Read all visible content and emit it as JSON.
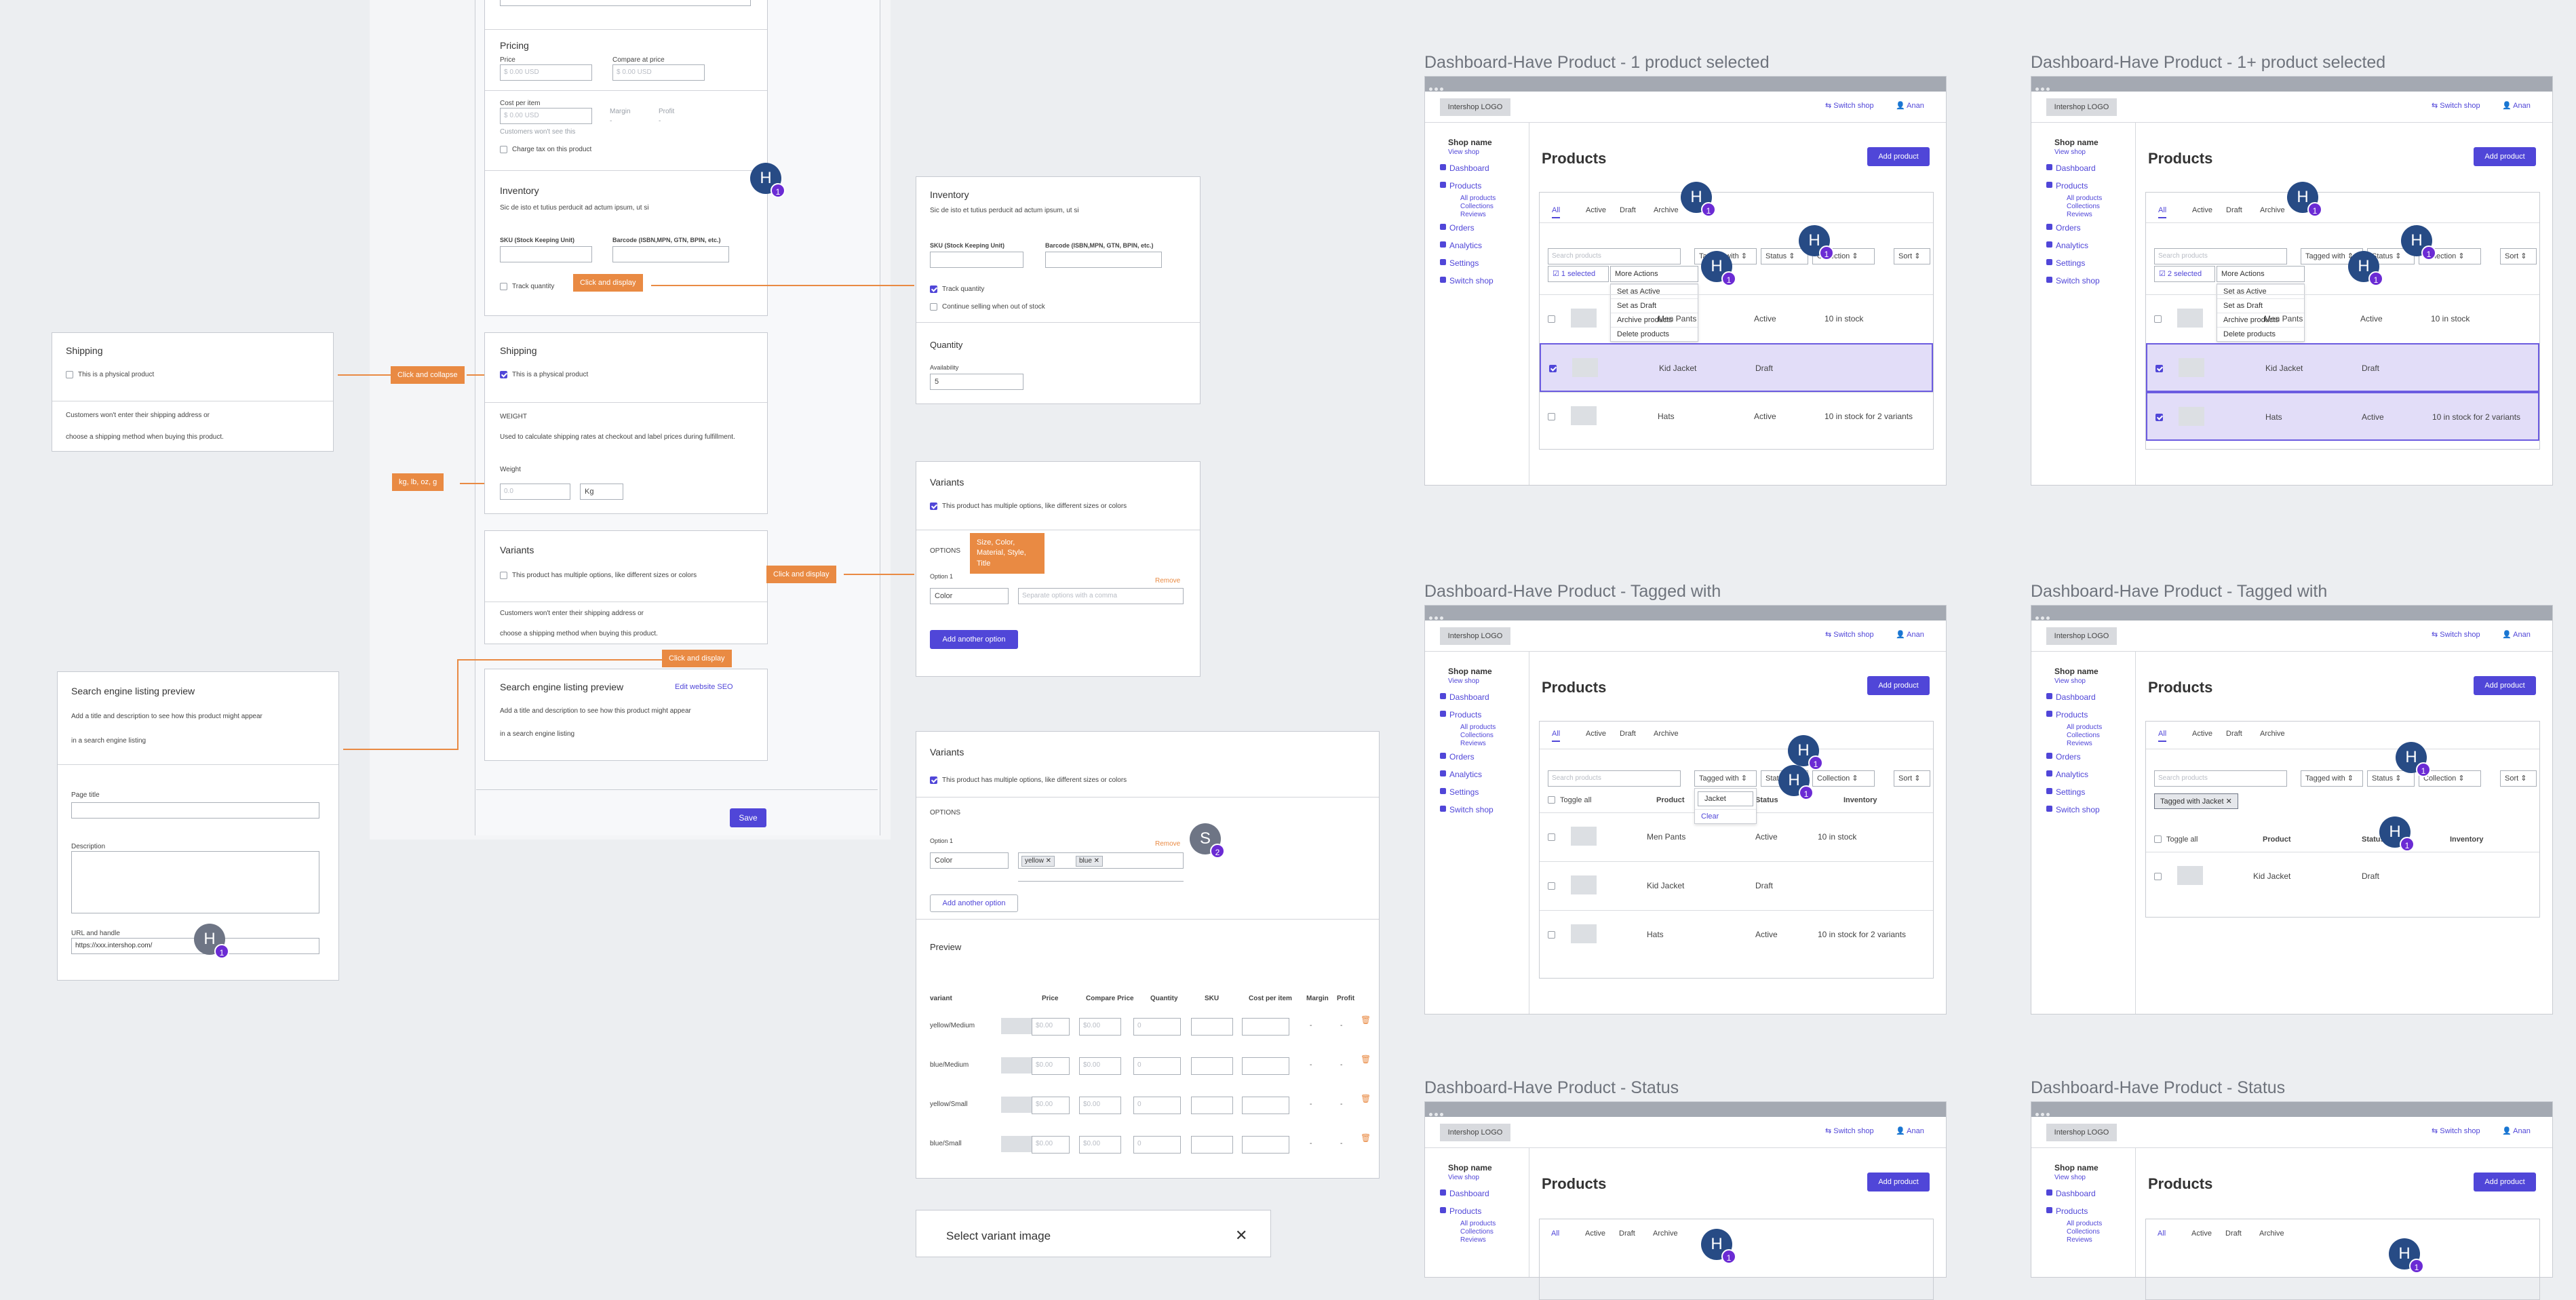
{
  "editor": {
    "pricing": {
      "title": "Pricing",
      "price_label": "Price",
      "price_ph": "$ 0.00 USD",
      "compare_label": "Compare at price",
      "compare_ph": "$ 0.00 USD",
      "cost_label": "Cost per item",
      "cost_ph": "$ 0.00 USD",
      "cost_note": "Customers won't see this",
      "margin": "Margin",
      "profit": "Profit",
      "dash": "-",
      "charge_tax": "Charge tax on this product"
    },
    "inventory": {
      "title": "Inventory",
      "desc": "Sic de isto et tutius perducit ad actum ipsum, ut si",
      "sku": "SKU (Stock Keeping Unit)",
      "barcode": "Barcode (ISBN,MPN, GTN, BPIN, etc.)",
      "track": "Track quantity"
    },
    "shipping": {
      "title": "Shipping",
      "physical": "This is a physical product",
      "weight_title": "WEIGHT",
      "weight_desc": "Used to calculate shipping rates at checkout and label prices during fulfillment.",
      "weight_label": "Weight",
      "weight_ph": "0.0",
      "unit": "Kg"
    },
    "variants": {
      "title": "Variants",
      "multi": "This product has multiple options, like different sizes or colors",
      "note1": "Customers won't enter their shipping address or",
      "note2": "choose a shipping method when buying this product."
    },
    "seo": {
      "title": "Search engine listing preview",
      "edit": "Edit website SEO",
      "desc1": "Add a title and description to see how this product might appear",
      "desc2": "in a search engine listing"
    },
    "save": "Save"
  },
  "annotations": {
    "click_display": "Click and display",
    "click_collapse": "Click and collapse",
    "units": "kg, lb, oz, g",
    "variant_opts": "Size, Color, Material, Style, Title"
  },
  "shipping_collapsed": {
    "title": "Shipping",
    "physical": "This is a physical product",
    "note1": "Customers won't enter their shipping address or",
    "note2": "choose a shipping method when buying this product."
  },
  "seo_expanded": {
    "title": "Search engine listing preview",
    "desc1": "Add a title and description to see how this product might appear",
    "desc2": "in a search engine listing",
    "page_title": "Page title",
    "description": "Description",
    "url": "URL and handle",
    "url_value": "https://xxx.intershop.com/"
  },
  "inventory_expanded": {
    "title": "Inventory",
    "desc": "Sic de isto et tutius perducit ad actum ipsum, ut si",
    "sku": "SKU (Stock Keeping Unit)",
    "barcode": "Barcode (ISBN,MPN, GTN, BPIN, etc.)",
    "track": "Track quantity",
    "continue": "Continue selling when out of stock",
    "qty_title": "Quantity",
    "availability": "Availability",
    "avail_value": "5"
  },
  "variants_expanded": {
    "title": "Variants",
    "multi": "This product has multiple options, like different sizes or colors",
    "options": "OPTIONS",
    "option1": "Option 1",
    "remove": "Remove",
    "select": "Color",
    "placeholder": "Separate options with a comma",
    "add": "Add another option"
  },
  "variants_filled": {
    "title": "Variants",
    "multi": "This product has multiple options, like different sizes or colors",
    "options": "OPTIONS",
    "option1": "Option 1",
    "remove": "Remove",
    "select": "Color",
    "tag1": "yellow",
    "tag2": "blue",
    "add": "Add another option",
    "preview": "Preview",
    "cols": [
      "variant",
      "Price",
      "Compare Price",
      "Quantity",
      "SKU",
      "Cost per item",
      "Margin",
      "Profit"
    ],
    "rows": [
      {
        "name": "yellow/Medium",
        "price": "$0.00",
        "compare": "$0.00",
        "qty": "0",
        "margin": "-",
        "profit": "-"
      },
      {
        "name": "blue/Medium",
        "price": "$0.00",
        "compare": "$0.00",
        "qty": "0",
        "margin": "-",
        "profit": "-"
      },
      {
        "name": "yellow/Small",
        "price": "$0.00",
        "compare": "$0.00",
        "qty": "0",
        "margin": "-",
        "profit": "-"
      },
      {
        "name": "blue/Small",
        "price": "$0.00",
        "compare": "$0.00",
        "qty": "0",
        "margin": "-",
        "profit": "-"
      }
    ]
  },
  "select_image": {
    "title": "Select variant image",
    "close": "✕"
  },
  "dashboard_common": {
    "logo": "Intershop LOGO",
    "switch_shop": "Switch shop",
    "user": "Anan",
    "shop_name": "Shop name",
    "view_shop": "View shop",
    "nav": [
      "Dashboard",
      "Products",
      "All products",
      "Collections",
      "Reviews",
      "Orders",
      "Analytics",
      "Settings",
      "Switch shop"
    ],
    "products": "Products",
    "add_product": "Add product",
    "tabs": [
      "All",
      "Active",
      "Draft",
      "Archive"
    ],
    "search_ph": "Search products",
    "tagged": "Tagged with",
    "status": "Status",
    "collection": "Collection",
    "sort": "Sort"
  },
  "dashboards": [
    {
      "title": "Dashboard-Have Product - 1 product selected",
      "selected": "1 selected",
      "more": "More Actions",
      "menu": [
        "Set as Active",
        "Set as Draft",
        "Archive products",
        "Delete products"
      ],
      "rows": [
        {
          "name": "Men Pants",
          "status": "Active",
          "inv": "10 in stock"
        },
        {
          "name": "Kid Jacket",
          "status": "Draft",
          "inv": ""
        },
        {
          "name": "Hats",
          "status": "Active",
          "inv": "10 in stock for 2 variants"
        }
      ]
    },
    {
      "title": "Dashboard-Have Product - 1+ product selected",
      "selected": "2 selected",
      "more": "More Actions",
      "menu": [
        "Set as Active",
        "Set as Draft",
        "Archive products",
        "Delete products"
      ],
      "rows": [
        {
          "name": "Men Pants",
          "status": "Active",
          "inv": "10 in stock"
        },
        {
          "name": "Kid Jacket",
          "status": "Draft",
          "inv": ""
        },
        {
          "name": "Hats",
          "status": "Active",
          "inv": "10 in stock for 2 variants"
        }
      ]
    },
    {
      "title": "Dashboard-Have Product - Tagged with",
      "toggle": "Toggle all",
      "product": "Product",
      "status_col": "Status",
      "inventory": "Inventory",
      "tag_input": "Jacket",
      "clear": "Clear",
      "rows": [
        {
          "name": "Men Pants",
          "status": "Active",
          "inv": "10 in stock"
        },
        {
          "name": "Kid Jacket",
          "status": "Draft",
          "inv": ""
        },
        {
          "name": "Hats",
          "status": "Active",
          "inv": "10 in stock for 2 variants"
        }
      ]
    },
    {
      "title": "Dashboard-Have Product - Tagged with",
      "chip": "Tagged with Jacket",
      "toggle": "Toggle all",
      "product": "Product",
      "status_col": "Status",
      "inventory": "Inventory",
      "rows": [
        {
          "name": "Kid Jacket",
          "status": "Draft",
          "inv": ""
        }
      ]
    },
    {
      "title": "Dashboard-Have Product - Status"
    },
    {
      "title": "Dashboard-Have Product - Status"
    }
  ],
  "avatars": {
    "h": "H",
    "s": "S",
    "one": "1",
    "two": "2"
  }
}
